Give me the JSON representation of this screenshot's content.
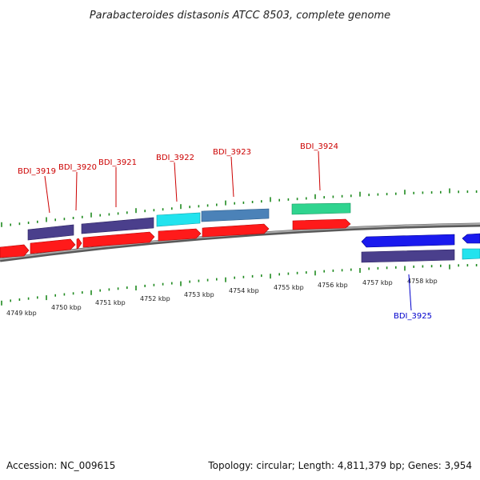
{
  "title": "Parabacteroides distasonis ATCC 8503, complete genome",
  "footer": {
    "accession": "Accession: NC_009615",
    "summary": "Topology: circular; Length: 4,811,379 bp; Genes: 3,954"
  },
  "colors": {
    "tick": "#1f8a1f",
    "backbone": "#8a8a8a",
    "forward_label": "#cc0000",
    "reverse_label": "#0000cc"
  },
  "scale": {
    "unit": "kbp",
    "ticks": [
      {
        "label": "4749 kbp"
      },
      {
        "label": "4750 kbp"
      },
      {
        "label": "4751 kbp"
      },
      {
        "label": "4752 kbp"
      },
      {
        "label": "4753 kbp"
      },
      {
        "label": "4754 kbp"
      },
      {
        "label": "4755 kbp"
      },
      {
        "label": "4756 kbp"
      },
      {
        "label": "4757 kbp"
      },
      {
        "label": "4758 kbp"
      }
    ]
  },
  "gene_labels": [
    {
      "name": "BDI_3919",
      "strand": "forward"
    },
    {
      "name": "BDI_3920",
      "strand": "forward"
    },
    {
      "name": "BDI_3921",
      "strand": "forward"
    },
    {
      "name": "BDI_3922",
      "strand": "forward"
    },
    {
      "name": "BDI_3923",
      "strand": "forward"
    },
    {
      "name": "BDI_3924",
      "strand": "forward"
    },
    {
      "name": "BDI_3925",
      "strand": "reverse"
    }
  ]
}
